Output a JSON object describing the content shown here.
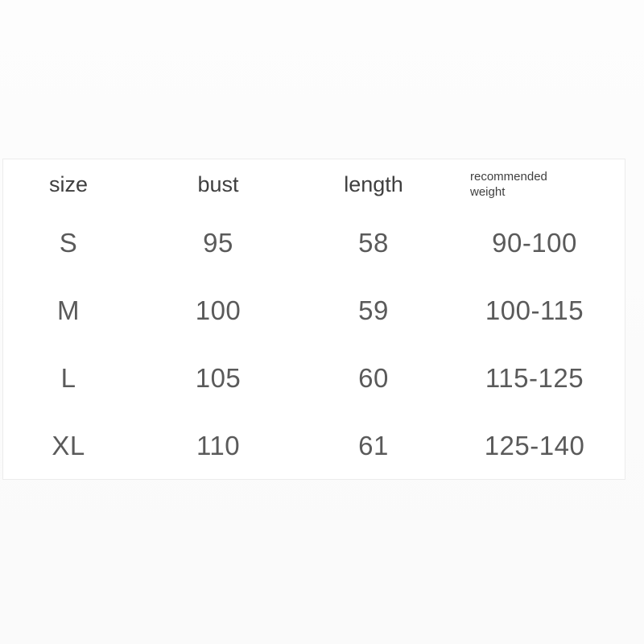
{
  "page": {
    "background": "#fbfbfb"
  },
  "card": {
    "background": "#ffffff",
    "border_color": "#ececec"
  },
  "colors": {
    "header_text": "#3f3f3f",
    "cell_text": "#5a5a5a"
  },
  "chart_data": {
    "type": "table",
    "columns": [
      "size",
      "bust",
      "length",
      "recommended weight"
    ],
    "rows": [
      [
        "S",
        "95",
        "58",
        "90-100"
      ],
      [
        "M",
        "100",
        "59",
        "100-115"
      ],
      [
        "L",
        "105",
        "60",
        "115-125"
      ],
      [
        "XL",
        "110",
        "61",
        "125-140"
      ]
    ]
  }
}
